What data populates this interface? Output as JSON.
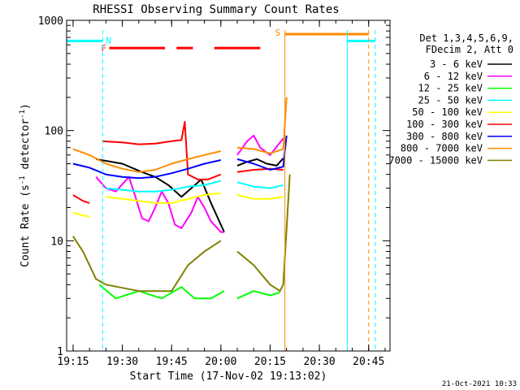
{
  "chart_data": {
    "type": "line",
    "title": "RHESSI Observing Summary Count Rates",
    "xlabel": "Start Time (17-Nov-02 19:13:02)",
    "ylabel_parts": [
      "Count Rate (s",
      "-1",
      " detector",
      "-1",
      ")"
    ],
    "yscale": "log",
    "ylim": [
      1,
      1000
    ],
    "xlim": [
      "19:13:02",
      "20:51:30"
    ],
    "x_tick_labels": [
      "19:15",
      "19:30",
      "19:45",
      "20:00",
      "20:15",
      "20:30",
      "20:45"
    ],
    "y_tick_labels": [
      "1",
      "10",
      "100",
      "1000"
    ],
    "footer_date": "21-Oct-2021 10:33",
    "legend_header": [
      "Det 1,3,4,5,6,9,",
      "FDecim 2, Att 0"
    ],
    "series": [
      {
        "name": "3 - 6 keV",
        "color": "#000000",
        "points": [
          [
            "19:22",
            55
          ],
          [
            "19:30",
            50
          ],
          [
            "19:36",
            42
          ],
          [
            "19:40",
            38
          ],
          [
            "19:44",
            32
          ],
          [
            "19:48",
            25
          ],
          [
            "19:51",
            30
          ],
          [
            "19:54",
            36
          ],
          [
            "19:57",
            22
          ],
          [
            "20:00",
            14
          ],
          [
            "20:01",
            12
          ],
          [
            "20:03",
            null
          ],
          [
            "20:05",
            48
          ],
          [
            "20:08",
            52
          ],
          [
            "20:11",
            55
          ],
          [
            "20:14",
            50
          ],
          [
            "20:17",
            48
          ],
          [
            "20:19",
            56
          ]
        ]
      },
      {
        "name": "6 - 12 keV",
        "color": "#ff00ff",
        "points": [
          [
            "19:22",
            38
          ],
          [
            "19:25",
            30
          ],
          [
            "19:28",
            28
          ],
          [
            "19:32",
            38
          ],
          [
            "19:34",
            25
          ],
          [
            "19:36",
            16
          ],
          [
            "19:38",
            15
          ],
          [
            "19:40",
            20
          ],
          [
            "19:42",
            28
          ],
          [
            "19:44",
            22
          ],
          [
            "19:46",
            14
          ],
          [
            "19:48",
            13
          ],
          [
            "19:51",
            18
          ],
          [
            "19:53",
            25
          ],
          [
            "19:55",
            20
          ],
          [
            "19:57",
            15
          ],
          [
            "20:00",
            12
          ],
          [
            "20:01",
            12
          ],
          [
            "20:03",
            null
          ],
          [
            "20:05",
            60
          ],
          [
            "20:08",
            80
          ],
          [
            "20:10",
            90
          ],
          [
            "20:12",
            70
          ],
          [
            "20:15",
            60
          ],
          [
            "20:19",
            85
          ]
        ]
      },
      {
        "name": "12 - 25 keV",
        "color": "#00ff00",
        "points": [
          [
            "19:23",
            4
          ],
          [
            "19:28",
            3
          ],
          [
            "19:35",
            3.5
          ],
          [
            "19:42",
            3
          ],
          [
            "19:48",
            3.8
          ],
          [
            "19:52",
            3
          ],
          [
            "19:57",
            3
          ],
          [
            "20:01",
            3.5
          ],
          [
            "20:03",
            null
          ],
          [
            "20:05",
            3
          ],
          [
            "20:10",
            3.5
          ],
          [
            "20:15",
            3.2
          ],
          [
            "20:18",
            3.4
          ]
        ]
      },
      {
        "name": "25 - 50 keV",
        "color": "#00ffff",
        "points": [
          [
            "19:25",
            30
          ],
          [
            "19:30",
            29
          ],
          [
            "19:35",
            28
          ],
          [
            "19:40",
            28
          ],
          [
            "19:45",
            29
          ],
          [
            "19:50",
            31
          ],
          [
            "19:55",
            32
          ],
          [
            "20:00",
            35
          ],
          [
            "20:03",
            null
          ],
          [
            "20:05",
            34
          ],
          [
            "20:10",
            31
          ],
          [
            "20:15",
            30
          ],
          [
            "20:19",
            32
          ]
        ]
      },
      {
        "name": "50 - 100 keV",
        "color": "#ffff00",
        "points": [
          [
            "19:15",
            18
          ],
          [
            "19:18",
            17
          ],
          [
            "19:20",
            16.5
          ],
          [
            "19:22",
            null
          ],
          [
            "19:25",
            25
          ],
          [
            "19:30",
            24
          ],
          [
            "19:35",
            23
          ],
          [
            "19:40",
            22
          ],
          [
            "19:45",
            22
          ],
          [
            "19:50",
            24
          ],
          [
            "19:55",
            26
          ],
          [
            "20:00",
            27
          ],
          [
            "20:03",
            null
          ],
          [
            "20:05",
            26
          ],
          [
            "20:10",
            24
          ],
          [
            "20:15",
            24
          ],
          [
            "20:19",
            25
          ]
        ]
      },
      {
        "name": "100 - 300 keV",
        "color": "#ff0000",
        "points": [
          [
            "19:15",
            26
          ],
          [
            "19:18",
            23
          ],
          [
            "19:20",
            22
          ],
          [
            "19:22",
            null
          ],
          [
            "19:24",
            80
          ],
          [
            "19:30",
            78
          ],
          [
            "19:35",
            75
          ],
          [
            "19:40",
            76
          ],
          [
            "19:45",
            80
          ],
          [
            "19:48",
            82
          ],
          [
            "19:49",
            120
          ],
          [
            "19:50",
            40
          ],
          [
            "19:53",
            36
          ],
          [
            "19:56",
            36
          ],
          [
            "20:00",
            40
          ],
          [
            "20:03",
            null
          ],
          [
            "20:05",
            42
          ],
          [
            "20:10",
            44
          ],
          [
            "20:15",
            45
          ],
          [
            "20:19",
            44
          ]
        ]
      },
      {
        "name": "300 - 800 keV",
        "color": "#0000ff",
        "points": [
          [
            "19:15",
            50
          ],
          [
            "19:20",
            46
          ],
          [
            "19:25",
            40
          ],
          [
            "19:30",
            38
          ],
          [
            "19:35",
            37
          ],
          [
            "19:40",
            38
          ],
          [
            "19:45",
            41
          ],
          [
            "19:50",
            45
          ],
          [
            "19:55",
            50
          ],
          [
            "20:00",
            54
          ],
          [
            "20:03",
            null
          ],
          [
            "20:05",
            55
          ],
          [
            "20:10",
            50
          ],
          [
            "20:15",
            44
          ],
          [
            "20:19",
            47
          ],
          [
            "20:20",
            90
          ]
        ]
      },
      {
        "name": "800 - 7000 keV",
        "color": "#ff8c00",
        "points": [
          [
            "19:15",
            68
          ],
          [
            "19:20",
            60
          ],
          [
            "19:25",
            50
          ],
          [
            "19:30",
            45
          ],
          [
            "19:35",
            42
          ],
          [
            "19:40",
            44
          ],
          [
            "19:45",
            50
          ],
          [
            "19:50",
            55
          ],
          [
            "19:55",
            60
          ],
          [
            "20:00",
            65
          ],
          [
            "20:03",
            null
          ],
          [
            "20:05",
            70
          ],
          [
            "20:10",
            68
          ],
          [
            "20:15",
            62
          ],
          [
            "20:19",
            68
          ],
          [
            "20:20",
            200
          ]
        ]
      },
      {
        "name": "7000 - 15000 keV",
        "color": "#808000",
        "points": [
          [
            "19:15",
            11
          ],
          [
            "19:18",
            8
          ],
          [
            "19:20",
            6
          ],
          [
            "19:22",
            4.5
          ],
          [
            "19:25",
            4
          ],
          [
            "19:35",
            3.5
          ],
          [
            "19:45",
            3.5
          ],
          [
            "19:50",
            6
          ],
          [
            "19:55",
            8
          ],
          [
            "20:00",
            10
          ],
          [
            "20:03",
            null
          ],
          [
            "20:05",
            8
          ],
          [
            "20:10",
            6
          ],
          [
            "20:15",
            4
          ],
          [
            "20:18",
            3.5
          ],
          [
            "20:19",
            4
          ],
          [
            "20:21",
            40
          ]
        ]
      }
    ],
    "segment_bars": [
      {
        "label": "N",
        "color": "#00ffff",
        "y": 650,
        "ranges": [
          [
            "19:13:02",
            "19:24:00"
          ],
          [
            "20:38:30",
            "20:47:00"
          ]
        ]
      },
      {
        "label": "F",
        "color": "#ff0000",
        "y": 560,
        "ranges": [
          [
            "19:26:00",
            "19:43:00"
          ],
          [
            "19:46:30",
            "19:51:30"
          ],
          [
            "19:58:00",
            "20:12:00"
          ]
        ]
      },
      {
        "label": "S",
        "color": "#ff8c00",
        "y": 750,
        "ranges": [
          [
            "20:19:30",
            "20:45:00"
          ]
        ]
      }
    ],
    "vertical_lines": [
      {
        "time": "19:24:00",
        "color": "#00ffff",
        "style": "dashed"
      },
      {
        "time": "20:19:30",
        "color": "#ff8c00",
        "style": "solid"
      },
      {
        "time": "20:38:30",
        "color": "#00ffff",
        "style": "solid"
      },
      {
        "time": "20:45:00",
        "color": "#ff8c00",
        "style": "dashed"
      },
      {
        "time": "20:47:00",
        "color": "#00ffff",
        "style": "dashed"
      }
    ]
  }
}
